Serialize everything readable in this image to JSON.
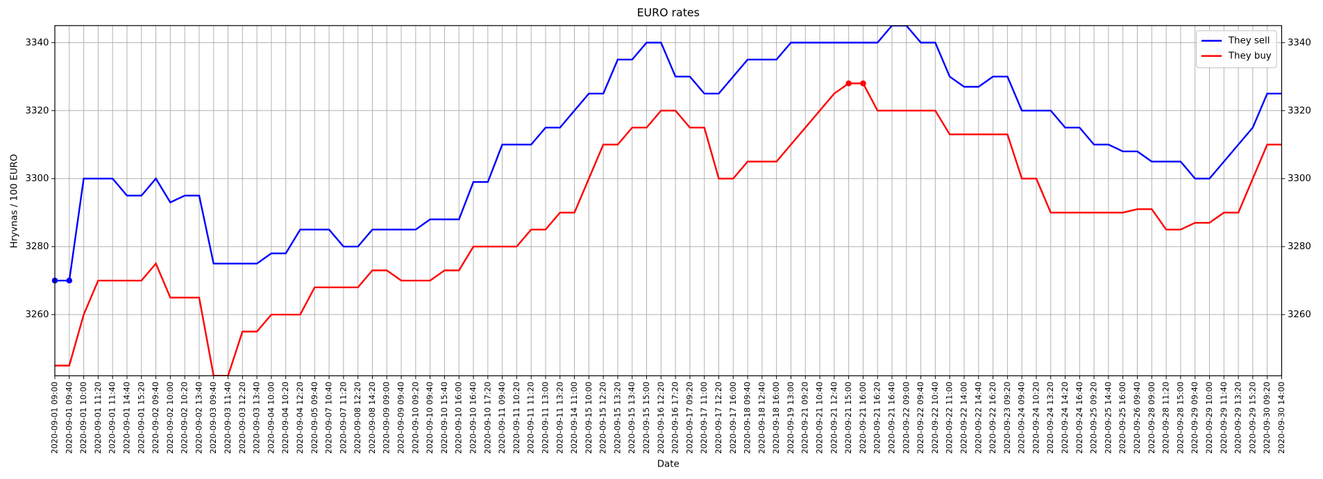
{
  "chart_data": {
    "type": "line",
    "title": "EURO rates",
    "x_label": "Date",
    "y_label": "Hryvnas / 100 EURO",
    "categories": [
      "2020-09-01 09:00",
      "2020-09-01 09:40",
      "2020-09-01 10:00",
      "2020-09-01 11:20",
      "2020-09-01 11:40",
      "2020-09-01 14:40",
      "2020-09-01 15:20",
      "2020-09-02 09:40",
      "2020-09-02 10:00",
      "2020-09-02 10:20",
      "2020-09-02 13:40",
      "2020-09-03 09:40",
      "2020-09-03 11:40",
      "2020-09-03 12:20",
      "2020-09-03 13:40",
      "2020-09-04 10:00",
      "2020-09-04 10:20",
      "2020-09-04 12:20",
      "2020-09-05 09:40",
      "2020-09-07 10:40",
      "2020-09-07 11:20",
      "2020-09-08 12:20",
      "2020-09-08 14:20",
      "2020-09-09 09:00",
      "2020-09-09 09:40",
      "2020-09-10 09:20",
      "2020-09-10 09:40",
      "2020-09-10 15:40",
      "2020-09-10 16:00",
      "2020-09-10 16:40",
      "2020-09-10 17:20",
      "2020-09-11 09:40",
      "2020-09-11 10:20",
      "2020-09-11 11:20",
      "2020-09-11 13:00",
      "2020-09-11 13:20",
      "2020-09-14 11:00",
      "2020-09-15 10:00",
      "2020-09-15 12:20",
      "2020-09-15 13:20",
      "2020-09-15 13:40",
      "2020-09-15 15:00",
      "2020-09-16 12:20",
      "2020-09-16 17:20",
      "2020-09-17 09:20",
      "2020-09-17 11:00",
      "2020-09-17 12:20",
      "2020-09-17 16:00",
      "2020-09-18 09:40",
      "2020-09-18 12:40",
      "2020-09-18 16:00",
      "2020-09-19 13:00",
      "2020-09-21 09:20",
      "2020-09-21 10:40",
      "2020-09-21 12:40",
      "2020-09-21 15:00",
      "2020-09-21 16:00",
      "2020-09-21 16:20",
      "2020-09-21 16:40",
      "2020-09-22 09:00",
      "2020-09-22 09:40",
      "2020-09-22 10:40",
      "2020-09-22 11:00",
      "2020-09-22 14:00",
      "2020-09-22 14:40",
      "2020-09-22 16:20",
      "2020-09-23 09:20",
      "2020-09-24 09:40",
      "2020-09-24 10:20",
      "2020-09-24 13:20",
      "2020-09-24 14:20",
      "2020-09-24 16:40",
      "2020-09-25 09:20",
      "2020-09-25 14:40",
      "2020-09-25 16:00",
      "2020-09-26 09:40",
      "2020-09-28 09:00",
      "2020-09-28 11:20",
      "2020-09-28 15:00",
      "2020-09-29 09:40",
      "2020-09-29 10:00",
      "2020-09-29 11:40",
      "2020-09-29 13:20",
      "2020-09-29 15:20",
      "2020-09-30 09:20",
      "2020-09-30 14:00"
    ],
    "series": [
      {
        "name": "They sell",
        "color": "#0000ff",
        "markers": "min",
        "values": [
          3270,
          3270,
          3300,
          3300,
          3300,
          3295,
          3295,
          3300,
          3293,
          3295,
          3295,
          3275,
          3275,
          3275,
          3275,
          3278,
          3278,
          3285,
          3285,
          3285,
          3280,
          3280,
          3285,
          3285,
          3285,
          3285,
          3288,
          3288,
          3288,
          3299,
          3299,
          3310,
          3310,
          3310,
          3315,
          3315,
          3320,
          3325,
          3325,
          3335,
          3335,
          3340,
          3340,
          3330,
          3330,
          3325,
          3325,
          3330,
          3335,
          3335,
          3335,
          3340,
          3340,
          3340,
          3340,
          3340,
          3340,
          3340,
          3345,
          3345,
          3340,
          3340,
          3330,
          3327,
          3327,
          3330,
          3330,
          3320,
          3320,
          3320,
          3315,
          3315,
          3310,
          3310,
          3308,
          3308,
          3305,
          3305,
          3305,
          3300,
          3300,
          3305,
          3310,
          3315,
          3325,
          3325
        ]
      },
      {
        "name": "They buy",
        "color": "#ff0000",
        "markers": "max",
        "values": [
          3245,
          3245,
          3260,
          3270,
          3270,
          3270,
          3270,
          3275,
          3265,
          3265,
          3265,
          3242,
          3242,
          3255,
          3255,
          3260,
          3260,
          3260,
          3268,
          3268,
          3268,
          3268,
          3273,
          3273,
          3270,
          3270,
          3270,
          3273,
          3273,
          3280,
          3280,
          3280,
          3280,
          3285,
          3285,
          3290,
          3290,
          3300,
          3310,
          3310,
          3315,
          3315,
          3320,
          3320,
          3315,
          3315,
          3300,
          3300,
          3305,
          3305,
          3305,
          3310,
          3315,
          3320,
          3325,
          3328,
          3328,
          3320,
          3320,
          3320,
          3320,
          3320,
          3313,
          3313,
          3313,
          3313,
          3313,
          3300,
          3300,
          3290,
          3290,
          3290,
          3290,
          3290,
          3290,
          3291,
          3291,
          3285,
          3285,
          3287,
          3287,
          3290,
          3290,
          3300,
          3310,
          3310
        ]
      }
    ],
    "ylim": [
      3242,
      3345
    ],
    "yticks": [
      3260,
      3280,
      3300,
      3320,
      3340
    ],
    "grid": true,
    "legend": "upper right",
    "right_axis_ticks": true
  }
}
